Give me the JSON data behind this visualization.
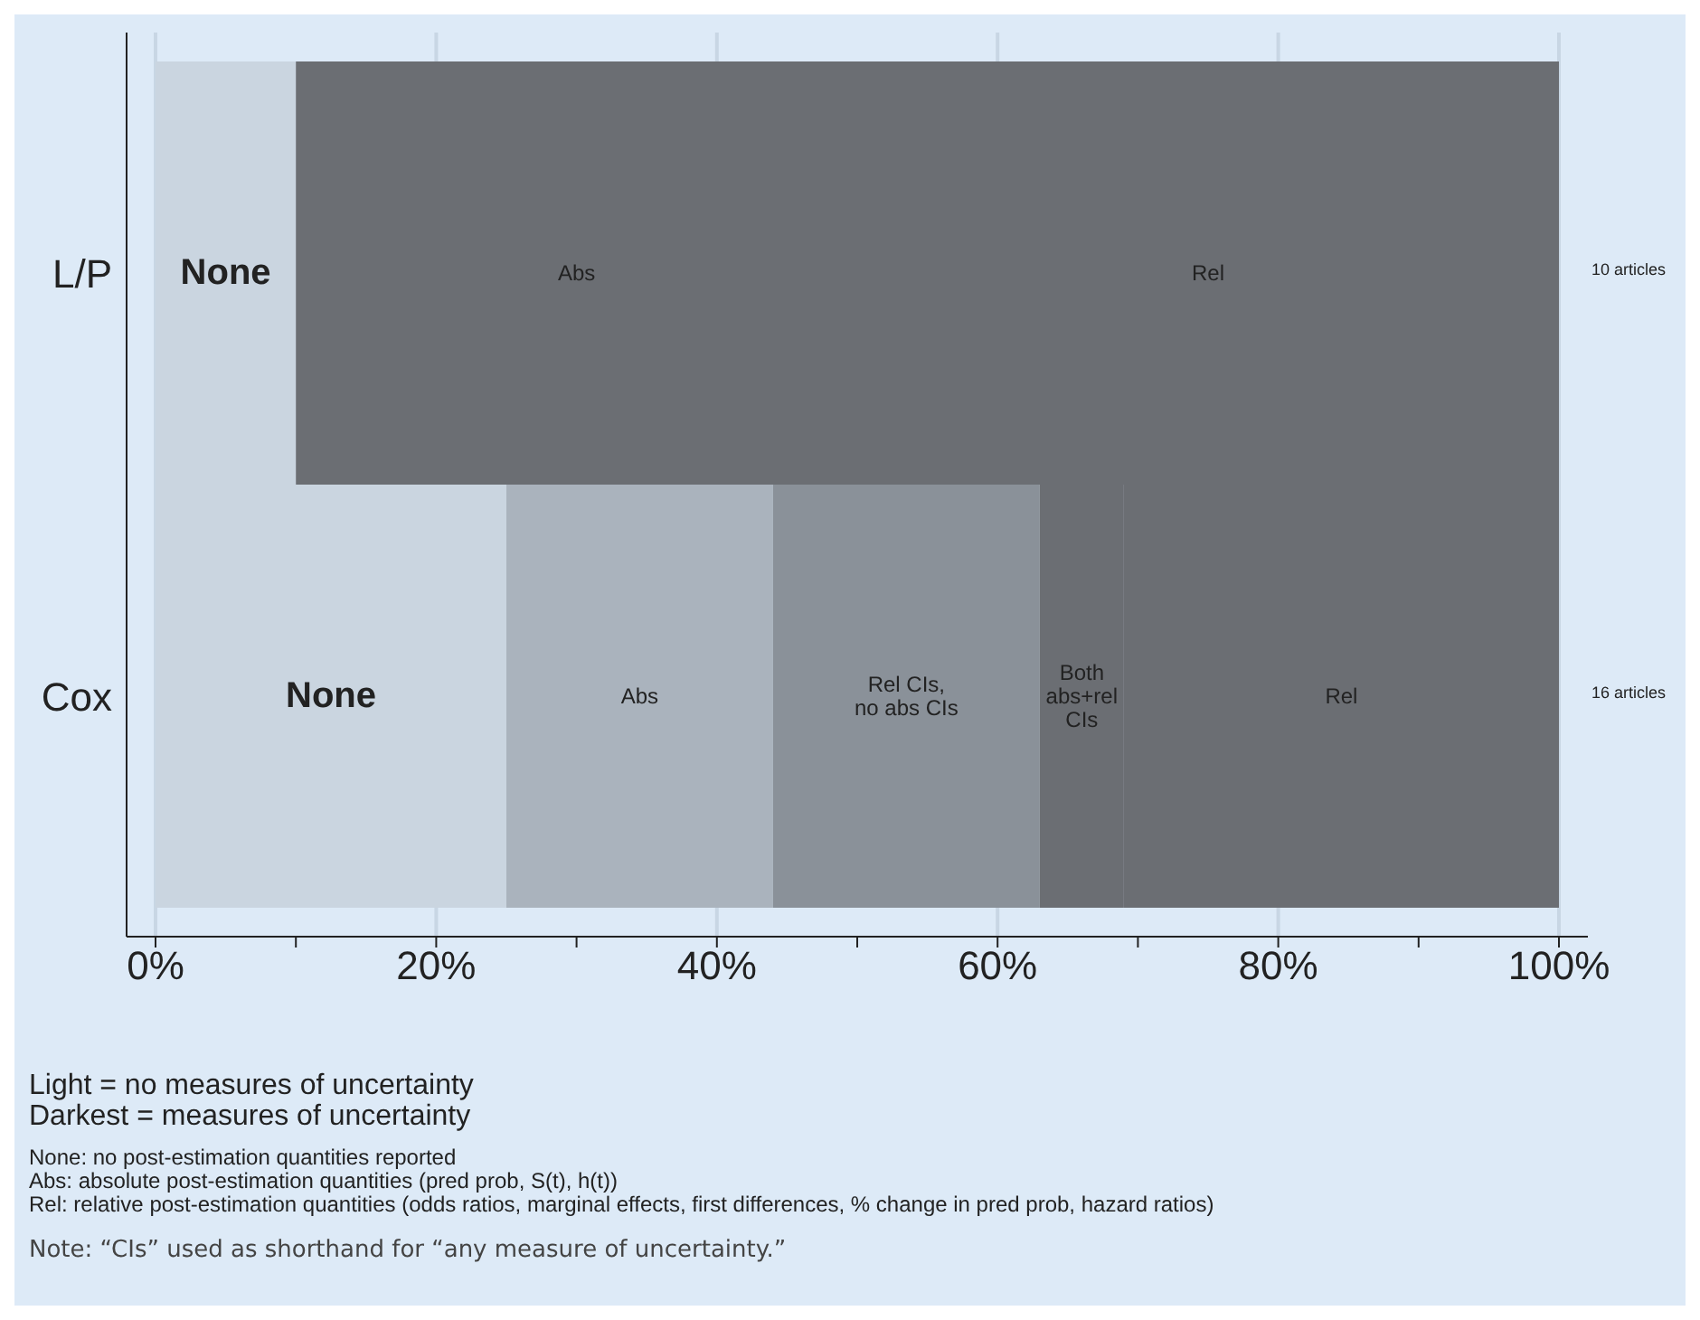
{
  "chart_data": {
    "type": "bar",
    "orientation": "horizontal",
    "stacked": true,
    "categories": [
      "L/P",
      "Cox"
    ],
    "series": [
      {
        "name": "None",
        "colors": [
          "#cad5e0",
          "#cad5e0"
        ],
        "values": [
          10,
          25
        ]
      },
      {
        "name": "Abs",
        "colors": [
          "#6b6e73",
          "#aab3bd"
        ],
        "values": [
          40,
          19
        ]
      },
      {
        "name": "Rel CIs, no abs CIs",
        "colors": [
          "#8a9199",
          "#8a9199"
        ],
        "values": [
          null,
          19
        ]
      },
      {
        "name": "Both abs+rel CIs",
        "colors": [
          "#6b6e73",
          "#6b6e73"
        ],
        "values": [
          null,
          6
        ]
      },
      {
        "name": "Rel",
        "colors": [
          "#6b6e73",
          "#6b6e73"
        ],
        "values": [
          50,
          31
        ]
      }
    ],
    "xlim": [
      0,
      100
    ],
    "xticks": [
      {
        "value": 0,
        "label": "0%"
      },
      {
        "value": 10,
        "label": null
      },
      {
        "value": 20,
        "label": "20%"
      },
      {
        "value": 30,
        "label": null
      },
      {
        "value": 40,
        "label": "40%"
      },
      {
        "value": 50,
        "label": null
      },
      {
        "value": 60,
        "label": "60%"
      },
      {
        "value": 70,
        "label": null
      },
      {
        "value": 80,
        "label": "80%"
      },
      {
        "value": 90,
        "label": null
      },
      {
        "value": 100,
        "label": "100%"
      }
    ],
    "grid": "x",
    "legend": false,
    "annotations": [
      "10 articles",
      "16 articles",
      "Light = no measures of uncertainty",
      "Darkest = measures of uncertainty",
      "None: no post-estimation quantities reported",
      "Abs: absolute post-estimation quantities (pred prob, S(t), h(t))",
      "Rel: relative post-estimation quantities (odds ratios, marginal effects, first differences, % change in pred prob, hazard ratios)",
      "Note: “CIs” used as shorthand for “any measure of uncertainty.”"
    ]
  }
}
